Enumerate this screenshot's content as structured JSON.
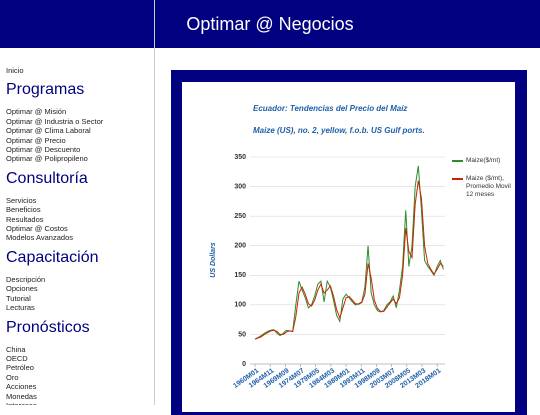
{
  "header": {
    "title": "Optimar @ Negocios"
  },
  "sidebar": {
    "home": "Inicio",
    "sections": [
      {
        "heading": "Programas",
        "items": [
          "Optimar @ Misión",
          "Optimar @ Industria o Sector",
          "Optimar @ Clima Laboral",
          "Optimar @ Precio",
          "Optimar @ Descuento",
          "Optimar @ Polipropileno"
        ]
      },
      {
        "heading": "Consultoría",
        "items": [
          "Servicios",
          "Beneficios",
          "Resultados",
          "Optimar @ Costos",
          "Modelos Avanzados"
        ]
      },
      {
        "heading": "Capacitación",
        "items": [
          "Descripción",
          "Opciones",
          "Tutorial",
          "Lecturas"
        ]
      },
      {
        "heading": "Pronósticos",
        "items": [
          "China",
          "OECD",
          "Petróleo",
          "Oro",
          "Acciones",
          "Monedas",
          "Intereses"
        ]
      }
    ]
  },
  "chart_data": {
    "type": "line",
    "title": "Ecuador: Tendencias del Precio del Maíz",
    "subtitle": "Maize (US), no. 2, yellow, f.o.b. US Gulf ports.",
    "y_label": "US Dollars",
    "x": [
      1960,
      1961,
      1962,
      1963,
      1964,
      1965,
      1966,
      1967,
      1968,
      1969,
      1970,
      1971,
      1972,
      1973,
      1974,
      1975,
      1976,
      1977,
      1978,
      1979,
      1980,
      1981,
      1982,
      1983,
      1984,
      1985,
      1986,
      1987,
      1988,
      1989,
      1990,
      1991,
      1992,
      1993,
      1994,
      1995,
      1996,
      1997,
      1998,
      1999,
      2000,
      2001,
      2002,
      2003,
      2004,
      2005,
      2006,
      2007,
      2008,
      2009,
      2010,
      2011,
      2012,
      2013,
      2014,
      2015,
      2016,
      2017,
      2018,
      2019,
      2020
    ],
    "series": [
      {
        "name": "Maize($/mt)",
        "color": "#2e8b2e",
        "values": [
          42,
          45,
          48,
          52,
          55,
          57,
          58,
          52,
          48,
          52,
          57,
          56,
          55,
          100,
          140,
          125,
          112,
          95,
          100,
          115,
          135,
          140,
          105,
          140,
          130,
          108,
          82,
          72,
          110,
          118,
          112,
          105,
          100,
          102,
          105,
          130,
          200,
          120,
          100,
          90,
          88,
          90,
          100,
          105,
          115,
          95,
          125,
          165,
          260,
          165,
          200,
          300,
          335,
          260,
          175,
          165,
          158,
          150,
          165,
          175,
          160
        ]
      },
      {
        "name": "Maize ($/mt), Promedio Movil 12 meses",
        "color": "#cc2200",
        "values": [
          42,
          44,
          46,
          50,
          53,
          56,
          57,
          55,
          50,
          50,
          54,
          56,
          55,
          80,
          120,
          130,
          118,
          102,
          98,
          108,
          125,
          135,
          120,
          125,
          132,
          115,
          92,
          78,
          95,
          112,
          114,
          108,
          102,
          101,
          104,
          118,
          170,
          145,
          108,
          94,
          89,
          89,
          96,
          103,
          110,
          102,
          112,
          150,
          230,
          190,
          180,
          270,
          310,
          280,
          200,
          170,
          160,
          152,
          160,
          170,
          165
        ]
      }
    ],
    "xlim": [
      1960,
      2020.5
    ],
    "xticks": [
      {
        "value": 1960.0,
        "label": "1960M01"
      },
      {
        "value": 1964.833,
        "label": "1964M11"
      },
      {
        "value": 1969.667,
        "label": "1969M09"
      },
      {
        "value": 1974.5,
        "label": "1974M07"
      },
      {
        "value": 1979.333,
        "label": "1979M05"
      },
      {
        "value": 1984.167,
        "label": "1984M03"
      },
      {
        "value": 1989.0,
        "label": "1989M01"
      },
      {
        "value": 1993.833,
        "label": "1993M11"
      },
      {
        "value": 1998.667,
        "label": "1998M09"
      },
      {
        "value": 2003.5,
        "label": "2003M07"
      },
      {
        "value": 2008.333,
        "label": "2008M05"
      },
      {
        "value": 2013.167,
        "label": "2013M03"
      },
      {
        "value": 2018.0,
        "label": "2018M01"
      }
    ],
    "ylim": [
      0,
      350
    ],
    "yticks": [
      0,
      50,
      100,
      150,
      200,
      250,
      300,
      350
    ],
    "grid": true
  }
}
